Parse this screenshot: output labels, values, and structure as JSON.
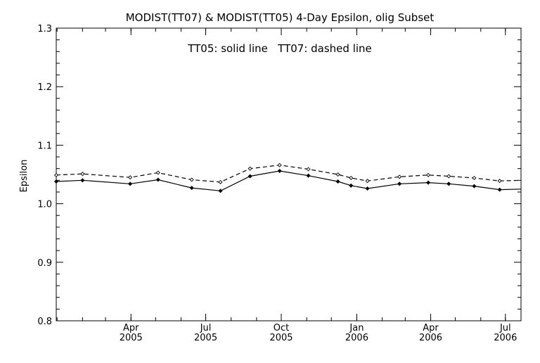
{
  "chart_data": {
    "type": "line",
    "title": "MODIST(TT07) & MODIST(TT05) 4-Day Epsilon, olig Subset",
    "annotation": "TT05: solid line   TT07: dashed line",
    "xlabel": "",
    "ylabel": "Epsilon",
    "ylim": [
      0.8,
      1.3
    ],
    "xlim": [
      "2004-12-31",
      "2006-07-20"
    ],
    "y_ticks": [
      "0.8",
      "0.9",
      "1.0",
      "1.1",
      "1.2",
      "1.3"
    ],
    "x_ticks": [
      {
        "date": "2005-04-01",
        "month": "Apr",
        "year": "2005"
      },
      {
        "date": "2005-07-01",
        "month": "Jul",
        "year": "2005"
      },
      {
        "date": "2005-10-01",
        "month": "Oct",
        "year": "2005"
      },
      {
        "date": "2006-01-01",
        "month": "Jan",
        "year": "2006"
      },
      {
        "date": "2006-04-01",
        "month": "Apr",
        "year": "2006"
      },
      {
        "date": "2006-07-01",
        "month": "Jul",
        "year": "2006"
      }
    ],
    "grid": false,
    "legend": "none",
    "series": [
      {
        "style": "solid",
        "x": [
          "2004-12-31",
          "2005-02-01",
          "2005-03-31",
          "2005-05-04",
          "2005-06-14",
          "2005-07-19",
          "2005-08-24",
          "2005-09-29",
          "2005-11-03",
          "2005-12-09",
          "2005-12-25",
          "2006-01-14",
          "2006-02-22",
          "2006-03-29",
          "2006-04-23",
          "2006-05-24",
          "2006-06-24",
          "2006-07-20"
        ],
        "values": [
          1.038,
          1.04,
          1.034,
          1.041,
          1.027,
          1.022,
          1.047,
          1.056,
          1.048,
          1.038,
          1.031,
          1.026,
          1.034,
          1.036,
          1.034,
          1.03,
          1.024,
          1.025
        ]
      },
      {
        "style": "dashed",
        "x": [
          "2004-12-31",
          "2005-02-01",
          "2005-03-31",
          "2005-05-04",
          "2005-06-14",
          "2005-07-19",
          "2005-08-24",
          "2005-09-29",
          "2005-11-03",
          "2005-12-09",
          "2005-12-25",
          "2006-01-14",
          "2006-02-22",
          "2006-03-29",
          "2006-04-23",
          "2006-05-24",
          "2006-06-24",
          "2006-07-20"
        ],
        "values": [
          1.049,
          1.051,
          1.045,
          1.053,
          1.041,
          1.037,
          1.06,
          1.066,
          1.059,
          1.05,
          1.044,
          1.039,
          1.046,
          1.049,
          1.047,
          1.044,
          1.039,
          1.04
        ]
      }
    ]
  }
}
